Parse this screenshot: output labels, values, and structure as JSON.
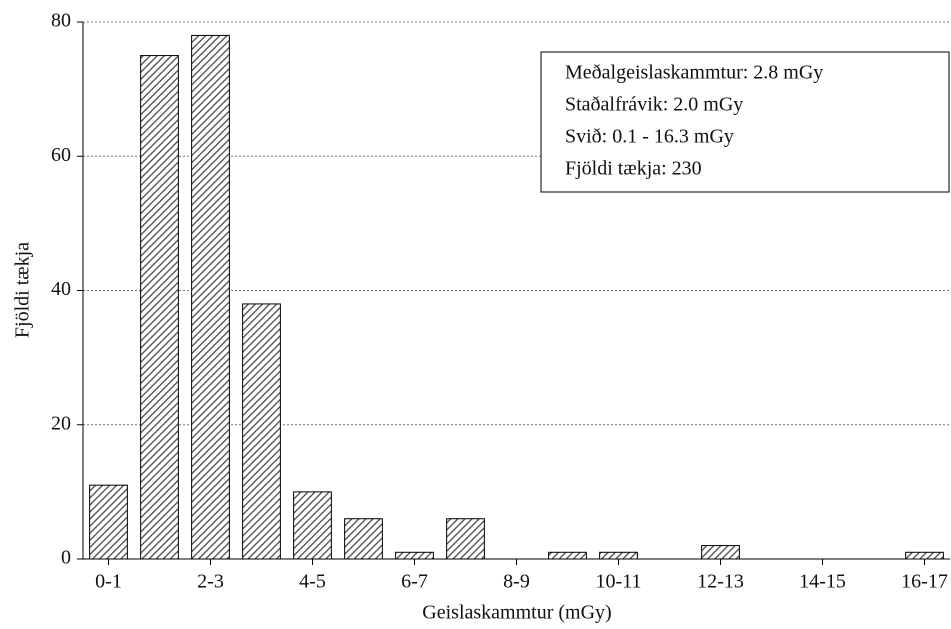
{
  "chart_data": {
    "type": "bar",
    "categories": [
      "0-1",
      null,
      "2-3",
      null,
      "4-5",
      null,
      "6-7",
      null,
      "8-9",
      null,
      "10-11",
      null,
      "12-13",
      null,
      "14-15",
      null,
      "16-17"
    ],
    "values": [
      11,
      75,
      78,
      38,
      10,
      6,
      1,
      6,
      0,
      1,
      1,
      0,
      2,
      0,
      0,
      0,
      1
    ],
    "color": "#444444",
    "ylim": [
      0,
      80
    ],
    "yticks": [
      0,
      20,
      40,
      60,
      80
    ],
    "grid": true,
    "xlabel": "Geislaskammtur (mGy)",
    "ylabel": "Fjöldi tækja",
    "annotations": [
      "Meðalgeislaskammtur: 2.8 mGy",
      "Staðalfrávik: 2.0 mGy",
      "Svið: 0.1 - 16.3 mGy",
      "Fjöldi tækja: 230"
    ],
    "legend_position": "upper right"
  }
}
